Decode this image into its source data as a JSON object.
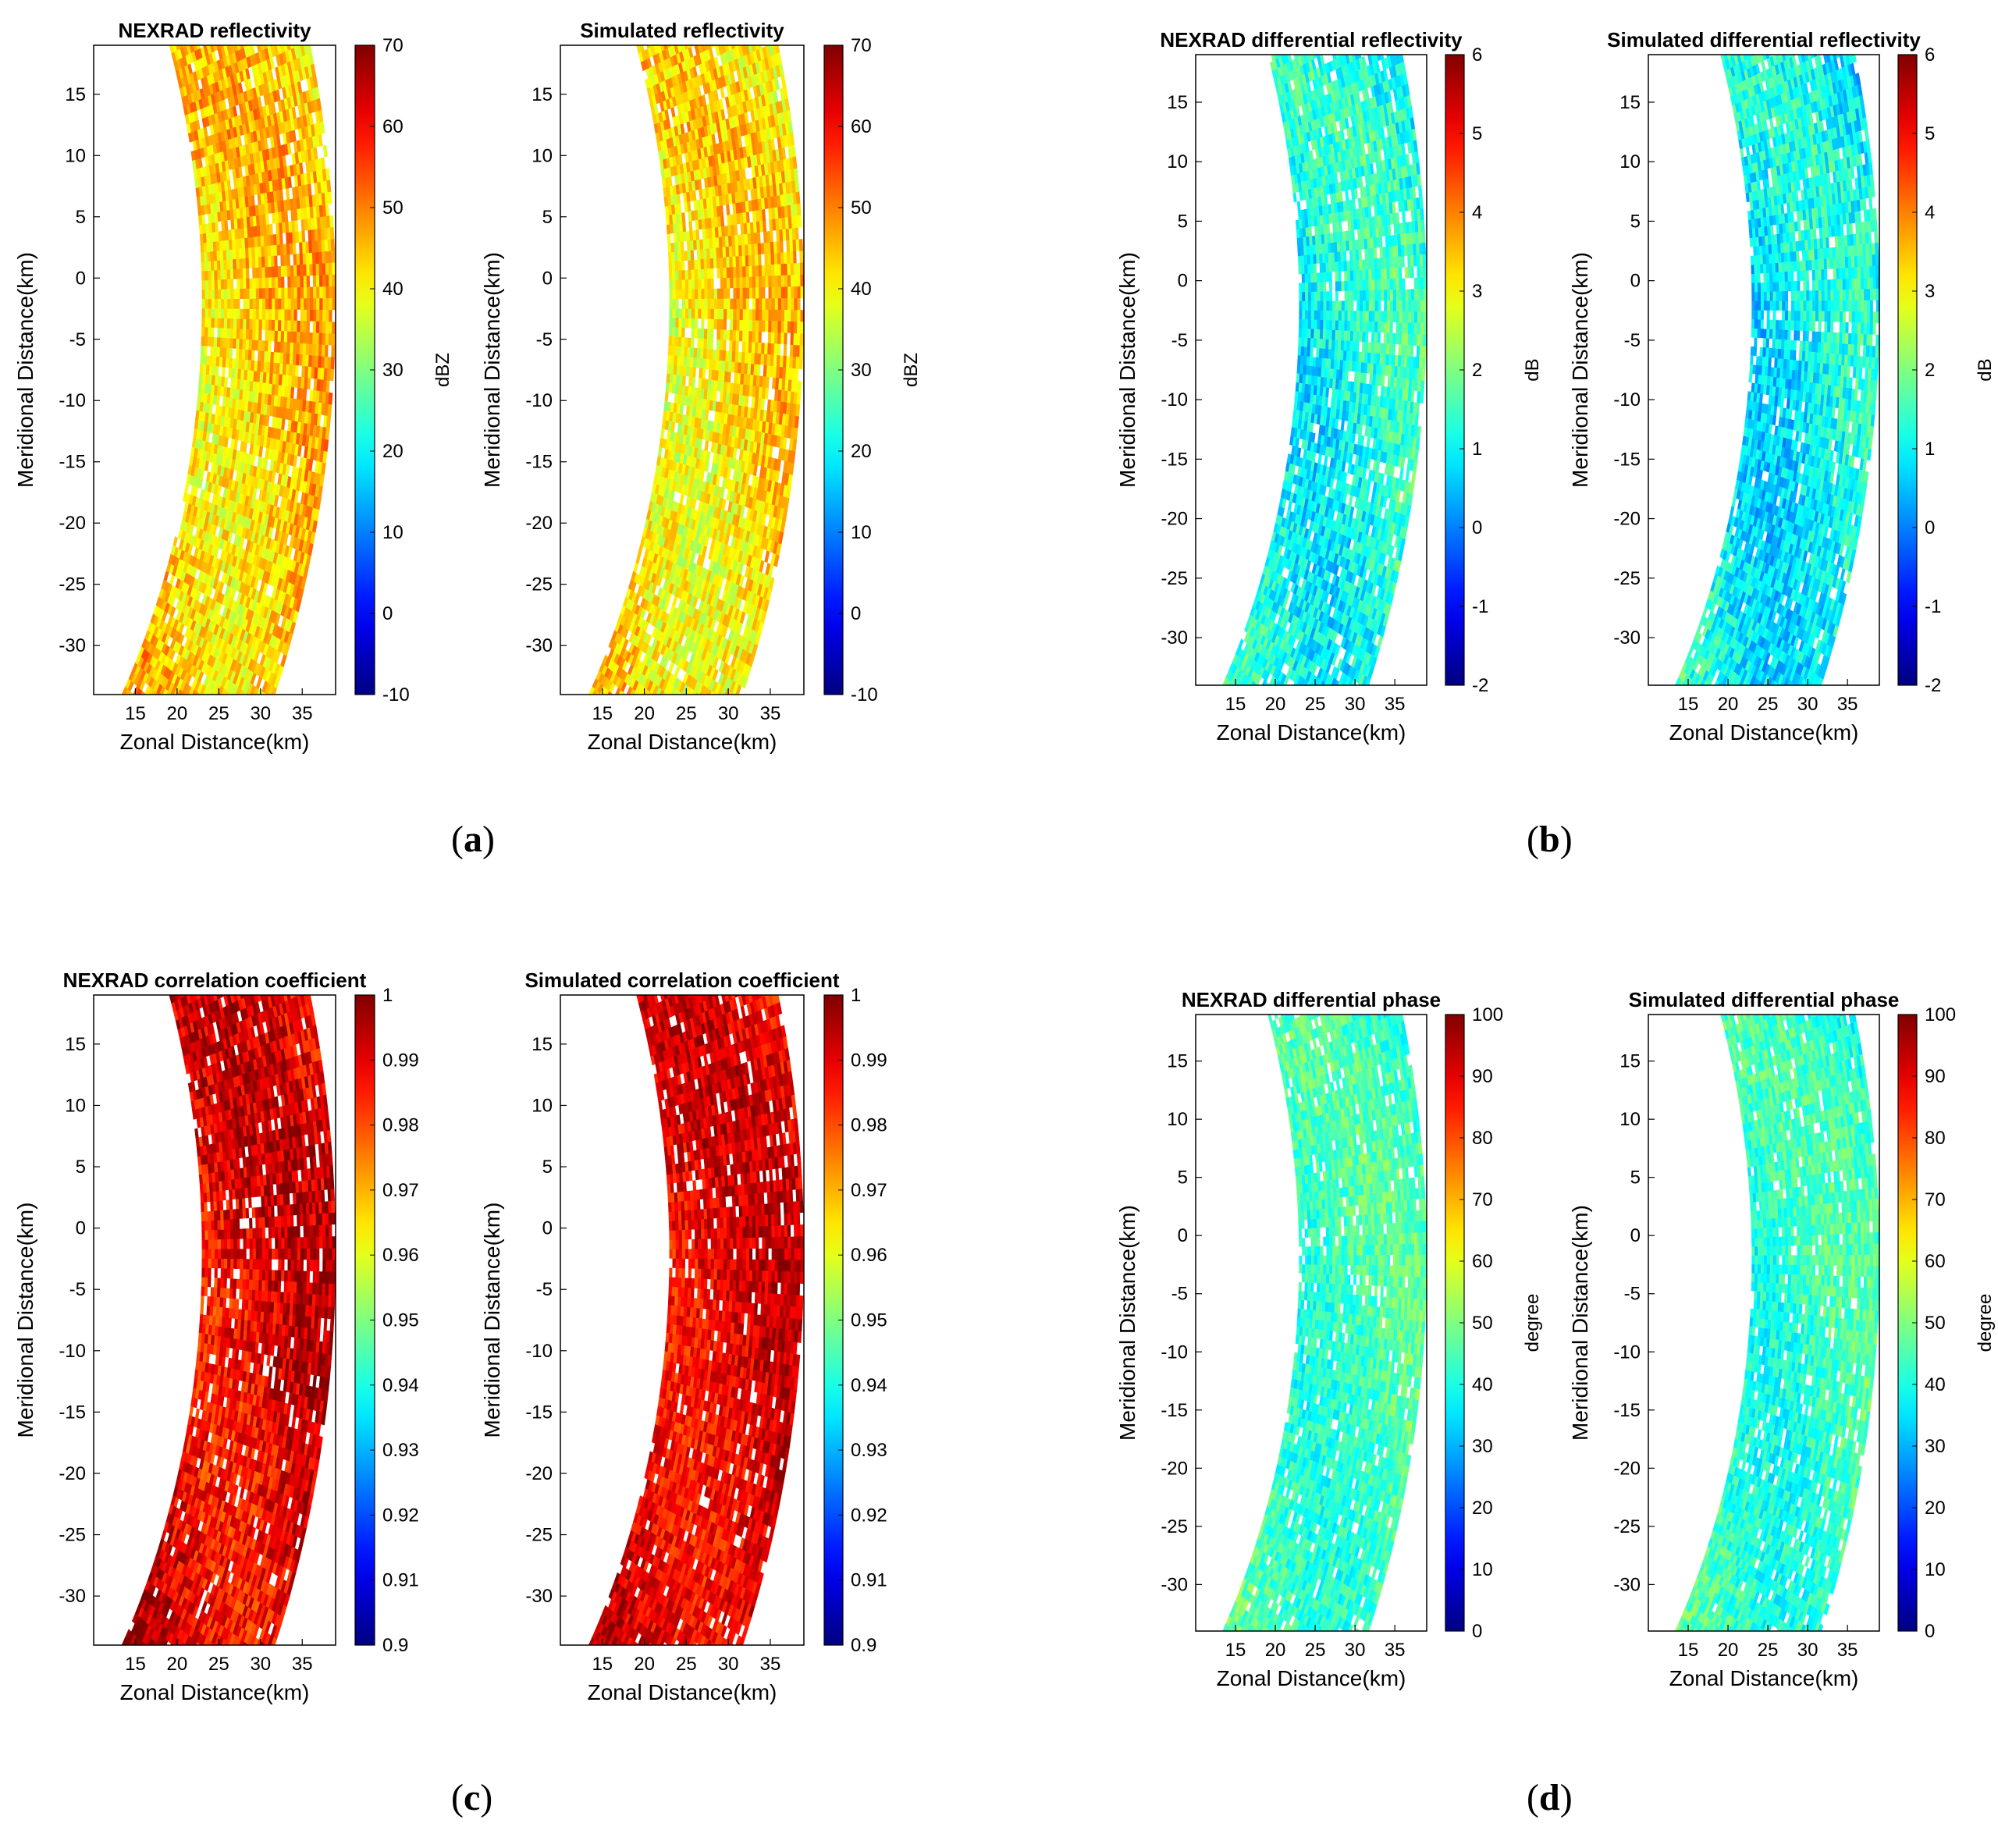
{
  "figure": {
    "subfigure_labels": [
      {
        "open": "(",
        "letter": "a",
        "close": ")"
      },
      {
        "open": "(",
        "letter": "b",
        "close": ")"
      },
      {
        "open": "(",
        "letter": "c",
        "close": ")"
      },
      {
        "open": "(",
        "letter": "d",
        "close": ")"
      }
    ]
  },
  "chart_data": [
    {
      "type": "heatmap",
      "panel": "a",
      "title": "NEXRAD reflectivity",
      "xlabel": "Zonal Distance(km)",
      "ylabel": "Meridional Distance(km)",
      "xlim": [
        10,
        39
      ],
      "ylim": [
        -34,
        19
      ],
      "xticks": [
        "15",
        "20",
        "25",
        "30",
        "35"
      ],
      "yticks": [
        "15",
        "10",
        "5",
        "0",
        "-5",
        "-10",
        "-15",
        "-20",
        "-25",
        "-30"
      ],
      "colorbar": {
        "label": "dBZ",
        "min": -10,
        "max": 70,
        "ticks": [
          "70",
          "60",
          "50",
          "40",
          "30",
          "20",
          "10",
          "0",
          "-10"
        ]
      },
      "field": {
        "mean": 44,
        "spread": 9
      }
    },
    {
      "type": "heatmap",
      "panel": "a",
      "title": "Simulated reflectivity",
      "xlabel": "Zonal Distance(km)",
      "ylabel": "Meridional Distance(km)",
      "xlim": [
        10,
        39
      ],
      "ylim": [
        -34,
        19
      ],
      "xticks": [
        "15",
        "20",
        "25",
        "30",
        "35"
      ],
      "yticks": [
        "15",
        "10",
        "5",
        "0",
        "-5",
        "-10",
        "-15",
        "-20",
        "-25",
        "-30"
      ],
      "colorbar": {
        "label": "dBZ",
        "min": -10,
        "max": 70,
        "ticks": [
          "70",
          "60",
          "50",
          "40",
          "30",
          "20",
          "10",
          "0",
          "-10"
        ]
      },
      "field": {
        "mean": 42,
        "spread": 9
      }
    },
    {
      "type": "heatmap",
      "panel": "b",
      "title": "NEXRAD differential reflectivity",
      "xlabel": "Zonal Distance(km)",
      "ylabel": "Meridional Distance(km)",
      "xlim": [
        10,
        39
      ],
      "ylim": [
        -34,
        19
      ],
      "xticks": [
        "15",
        "20",
        "25",
        "30",
        "35"
      ],
      "yticks": [
        "15",
        "10",
        "5",
        "0",
        "-5",
        "-10",
        "-15",
        "-20",
        "-25",
        "-30"
      ],
      "colorbar": {
        "label": "dB",
        "min": -2,
        "max": 6,
        "ticks": [
          "6",
          "5",
          "4",
          "3",
          "2",
          "1",
          "0",
          "-1",
          "-2"
        ]
      },
      "field": {
        "mean": 1.2,
        "spread": 0.9
      }
    },
    {
      "type": "heatmap",
      "panel": "b",
      "title": "Simulated differential reflectivity",
      "xlabel": "Zonal Distance(km)",
      "ylabel": "Meridional Distance(km)",
      "xlim": [
        10,
        39
      ],
      "ylim": [
        -34,
        19
      ],
      "xticks": [
        "15",
        "20",
        "25",
        "30",
        "35"
      ],
      "yticks": [
        "15",
        "10",
        "5",
        "0",
        "-5",
        "-10",
        "-15",
        "-20",
        "-25",
        "-30"
      ],
      "colorbar": {
        "label": "dB",
        "min": -2,
        "max": 6,
        "ticks": [
          "6",
          "5",
          "4",
          "3",
          "2",
          "1",
          "0",
          "-1",
          "-2"
        ]
      },
      "field": {
        "mean": 1.0,
        "spread": 0.9
      }
    },
    {
      "type": "heatmap",
      "panel": "c",
      "title": "NEXRAD correlation coefficient",
      "xlabel": "Zonal Distance(km)",
      "ylabel": "Meridional Distance(km)",
      "xlim": [
        10,
        39
      ],
      "ylim": [
        -34,
        19
      ],
      "xticks": [
        "15",
        "20",
        "25",
        "30",
        "35"
      ],
      "yticks": [
        "15",
        "10",
        "5",
        "0",
        "-5",
        "-10",
        "-15",
        "-20",
        "-25",
        "-30"
      ],
      "colorbar": {
        "label": "",
        "min": 0.9,
        "max": 1,
        "ticks": [
          "1",
          "0.99",
          "0.98",
          "0.97",
          "0.96",
          "0.95",
          "0.94",
          "0.93",
          "0.92",
          "0.91",
          "0.9"
        ]
      },
      "field": {
        "mean": 0.99,
        "spread": 0.012
      }
    },
    {
      "type": "heatmap",
      "panel": "c",
      "title": "Simulated correlation coefficient",
      "xlabel": "Zonal Distance(km)",
      "ylabel": "Meridional Distance(km)",
      "xlim": [
        10,
        39
      ],
      "ylim": [
        -34,
        19
      ],
      "xticks": [
        "15",
        "20",
        "25",
        "30",
        "35"
      ],
      "yticks": [
        "15",
        "10",
        "5",
        "0",
        "-5",
        "-10",
        "-15",
        "-20",
        "-25",
        "-30"
      ],
      "colorbar": {
        "label": "",
        "min": 0.9,
        "max": 1,
        "ticks": [
          "1",
          "0.99",
          "0.98",
          "0.97",
          "0.96",
          "0.95",
          "0.94",
          "0.93",
          "0.92",
          "0.91",
          "0.9"
        ]
      },
      "field": {
        "mean": 0.99,
        "spread": 0.01
      }
    },
    {
      "type": "heatmap",
      "panel": "d",
      "title": "NEXRAD differential phase",
      "xlabel": "Zonal Distance(km)",
      "ylabel": "Meridional Distance(km)",
      "xlim": [
        10,
        39
      ],
      "ylim": [
        -34,
        19
      ],
      "xticks": [
        "15",
        "20",
        "25",
        "30",
        "35"
      ],
      "yticks": [
        "15",
        "10",
        "5",
        "0",
        "-5",
        "-10",
        "-15",
        "-20",
        "-25",
        "-30"
      ],
      "colorbar": {
        "label": "degree",
        "min": 0,
        "max": 100,
        "ticks": [
          "100",
          "90",
          "80",
          "70",
          "60",
          "50",
          "40",
          "30",
          "20",
          "10",
          "0"
        ]
      },
      "field": {
        "mean": 44,
        "spread": 9
      }
    },
    {
      "type": "heatmap",
      "panel": "d",
      "title": "Simulated differential phase",
      "xlabel": "Zonal Distance(km)",
      "ylabel": "Meridional Distance(km)",
      "xlim": [
        10,
        39
      ],
      "ylim": [
        -34,
        19
      ],
      "xticks": [
        "15",
        "20",
        "25",
        "30",
        "35"
      ],
      "yticks": [
        "15",
        "10",
        "5",
        "0",
        "-5",
        "-10",
        "-15",
        "-20",
        "-25",
        "-30"
      ],
      "colorbar": {
        "label": "degree",
        "min": 0,
        "max": 100,
        "ticks": [
          "100",
          "90",
          "80",
          "70",
          "60",
          "50",
          "40",
          "30",
          "20",
          "10",
          "0"
        ]
      },
      "field": {
        "mean": 43,
        "spread": 9
      }
    }
  ]
}
